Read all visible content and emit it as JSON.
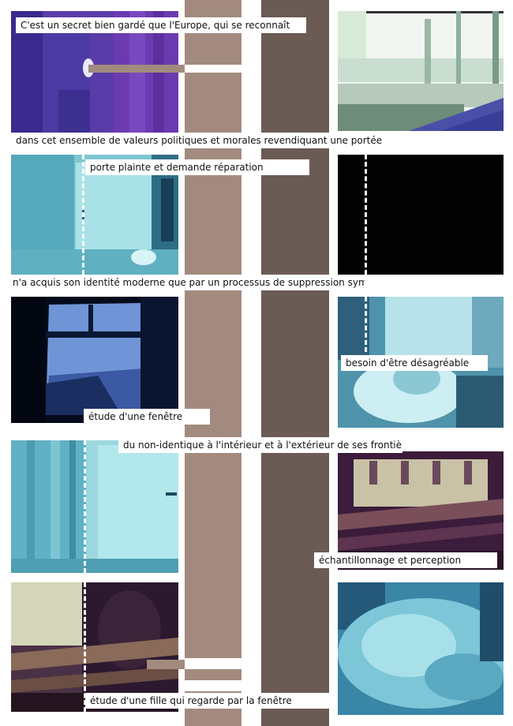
{
  "captions": {
    "c1": "C'est un secret bien gardé que l'Europe, qui se reconnaît",
    "c2": "dans cet ensemble de valeurs politiques et morales revendiquant une portée",
    "c3": "porte plainte et demande réparation",
    "c4": "n'a acquis son identité moderne que par un processus de suppression symbolique",
    "c5": "besoin d'être désagréable",
    "c6": "étude d'une fenêtre",
    "c7": "du non-identique à l'intérieur et à l'extérieur de ses frontières",
    "c8": "échantillonnage et perception",
    "c9": "étude d'une fille qui regarde par la fenêtre"
  },
  "colors": {
    "stripe_light": "#a28b7e",
    "stripe_dark": "#6b5b55",
    "purple": "#5b3ba6",
    "cyan": "#8fd3dc",
    "navy": "#0b1f3e",
    "black": "#020202",
    "plum": "#3a1b3a"
  }
}
